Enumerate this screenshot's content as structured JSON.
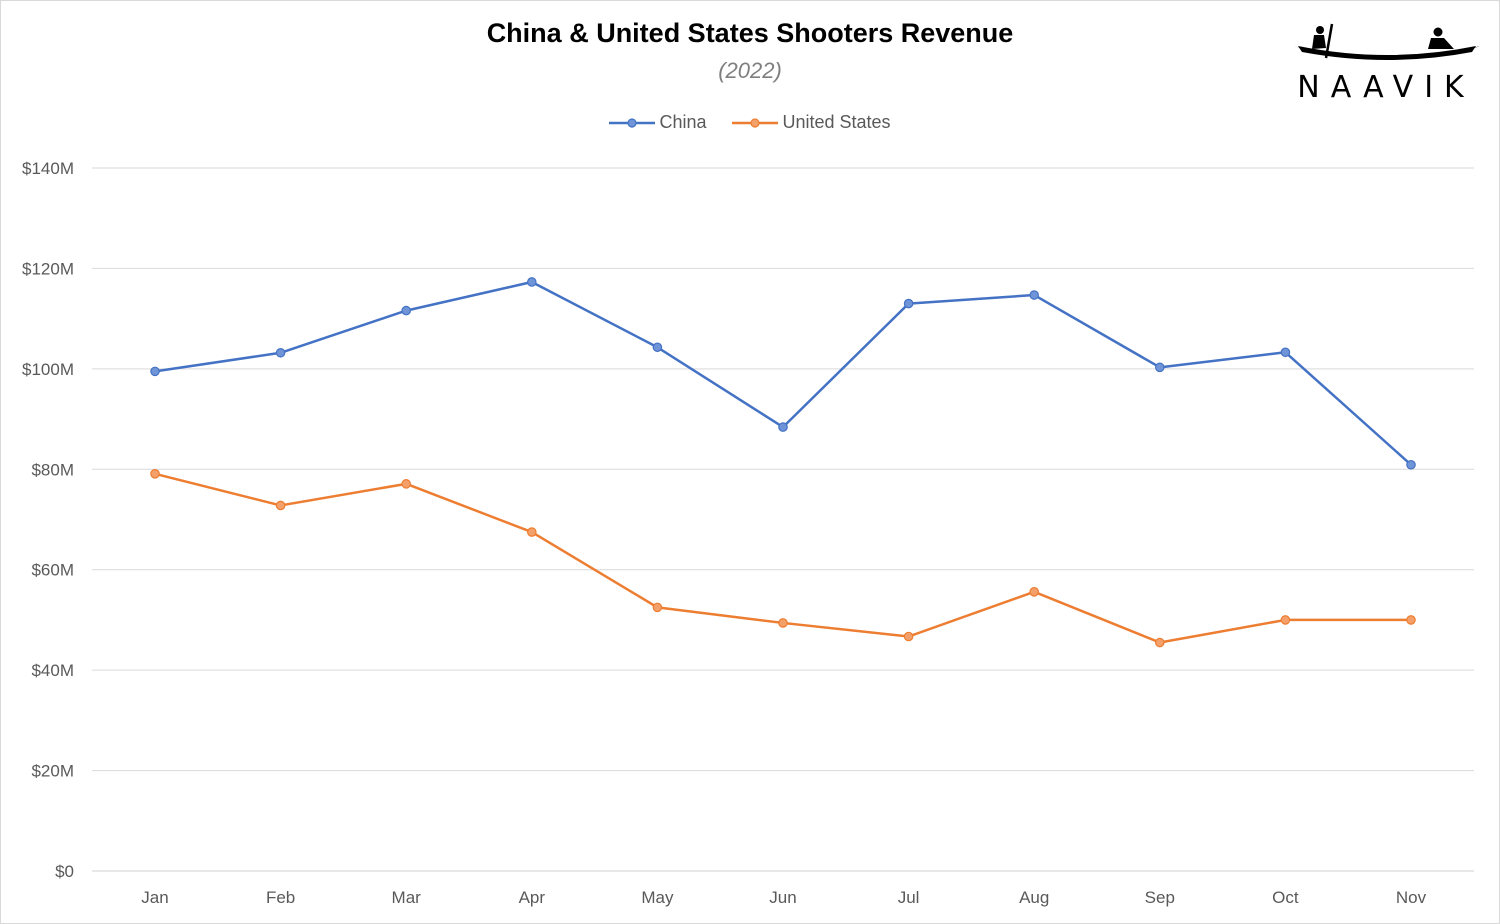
{
  "chart_data": {
    "type": "line",
    "title": "China & United States Shooters Revenue",
    "subtitle": "(2022)",
    "categories": [
      "Jan",
      "Feb",
      "Mar",
      "Apr",
      "May",
      "Jun",
      "Jul",
      "Aug",
      "Sep",
      "Oct",
      "Nov"
    ],
    "y_tick_labels": [
      "$0",
      "$20M",
      "$40M",
      "$60M",
      "$80M",
      "$100M",
      "$120M",
      "$140M"
    ],
    "ylim": [
      0,
      140
    ],
    "y_unit": "$M",
    "grid": true,
    "legend_position": "top",
    "series": [
      {
        "name": "China",
        "color": "#4472c4",
        "values": [
          99.5,
          103.2,
          111.6,
          117.3,
          104.3,
          88.4,
          113.0,
          114.7,
          100.3,
          103.3,
          80.9
        ]
      },
      {
        "name": "United States",
        "color": "#ed7d31",
        "values": [
          79.1,
          72.8,
          77.1,
          67.5,
          52.5,
          49.4,
          46.7,
          55.6,
          45.5,
          50.0,
          50.0
        ]
      }
    ]
  },
  "branding": {
    "logo_text": "NAAVIK",
    "logo_icon": "boat-with-rowers-icon"
  }
}
